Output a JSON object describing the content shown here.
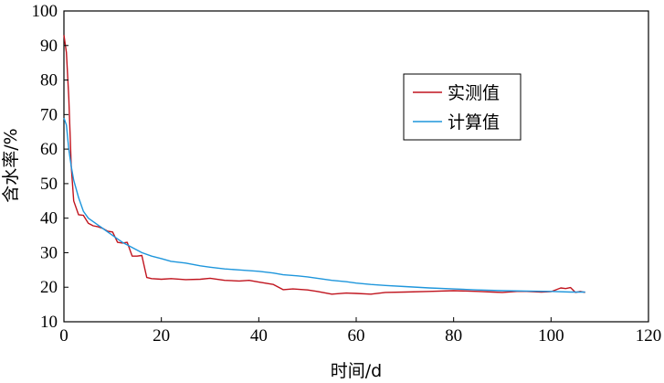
{
  "chart_data": {
    "type": "line",
    "xlabel": "时间/d",
    "ylabel": "含水率/%",
    "xlim": [
      0,
      120
    ],
    "ylim": [
      10,
      100
    ],
    "xticks": [
      0,
      20,
      40,
      60,
      80,
      100,
      120
    ],
    "yticks": [
      10,
      20,
      30,
      40,
      50,
      60,
      70,
      80,
      90,
      100
    ],
    "grid": false,
    "legend_position": "upper-right",
    "series": [
      {
        "name": "实测值",
        "color": "#c0141e",
        "x": [
          0,
          0.5,
          1,
          1.5,
          2,
          3,
          4,
          5,
          6,
          7,
          8,
          9,
          10,
          11,
          12,
          13,
          14,
          15,
          16,
          16.5,
          17,
          18,
          20,
          22,
          25,
          28,
          30,
          33,
          36,
          38,
          40,
          43,
          45,
          47,
          50,
          52,
          55,
          58,
          60,
          63,
          66,
          70,
          75,
          80,
          85,
          88,
          90,
          93,
          95,
          98,
          100,
          102,
          103,
          104,
          105,
          106,
          107
        ],
        "y": [
          93,
          88,
          75,
          55,
          45,
          41,
          40.8,
          38.5,
          37.8,
          37.5,
          37,
          36.2,
          36,
          33,
          32.8,
          33,
          29,
          29,
          29.2,
          26,
          22.8,
          22.5,
          22.3,
          22.5,
          22.2,
          22.3,
          22.6,
          22,
          21.8,
          22,
          21.5,
          20.8,
          19.3,
          19.5,
          19.2,
          18.8,
          18,
          18.3,
          18.2,
          18,
          18.5,
          18.6,
          18.8,
          19,
          18.8,
          18.6,
          18.5,
          18.8,
          18.8,
          18.6,
          18.7,
          19.8,
          19.6,
          19.9,
          18.5,
          18.8,
          18.5
        ]
      },
      {
        "name": "计算值",
        "color": "#1e96dc",
        "x": [
          0,
          0.5,
          1,
          1.5,
          2,
          3,
          4,
          5,
          6,
          7,
          8,
          9,
          10,
          12,
          14,
          16,
          18,
          20,
          22,
          25,
          28,
          30,
          33,
          36,
          40,
          43,
          45,
          48,
          50,
          53,
          55,
          58,
          60,
          63,
          66,
          70,
          75,
          80,
          85,
          90,
          95,
          100,
          104,
          107
        ],
        "y": [
          69,
          67,
          60,
          55,
          51,
          46,
          42,
          40,
          39,
          38,
          37,
          36,
          35,
          33,
          31.5,
          30,
          29,
          28.3,
          27.5,
          27,
          26.2,
          25.8,
          25.3,
          25,
          24.6,
          24.1,
          23.6,
          23.3,
          23,
          22.4,
          22,
          21.6,
          21.2,
          20.8,
          20.5,
          20.2,
          19.8,
          19.5,
          19.2,
          19,
          18.9,
          18.8,
          18.6,
          18.6
        ]
      }
    ]
  }
}
